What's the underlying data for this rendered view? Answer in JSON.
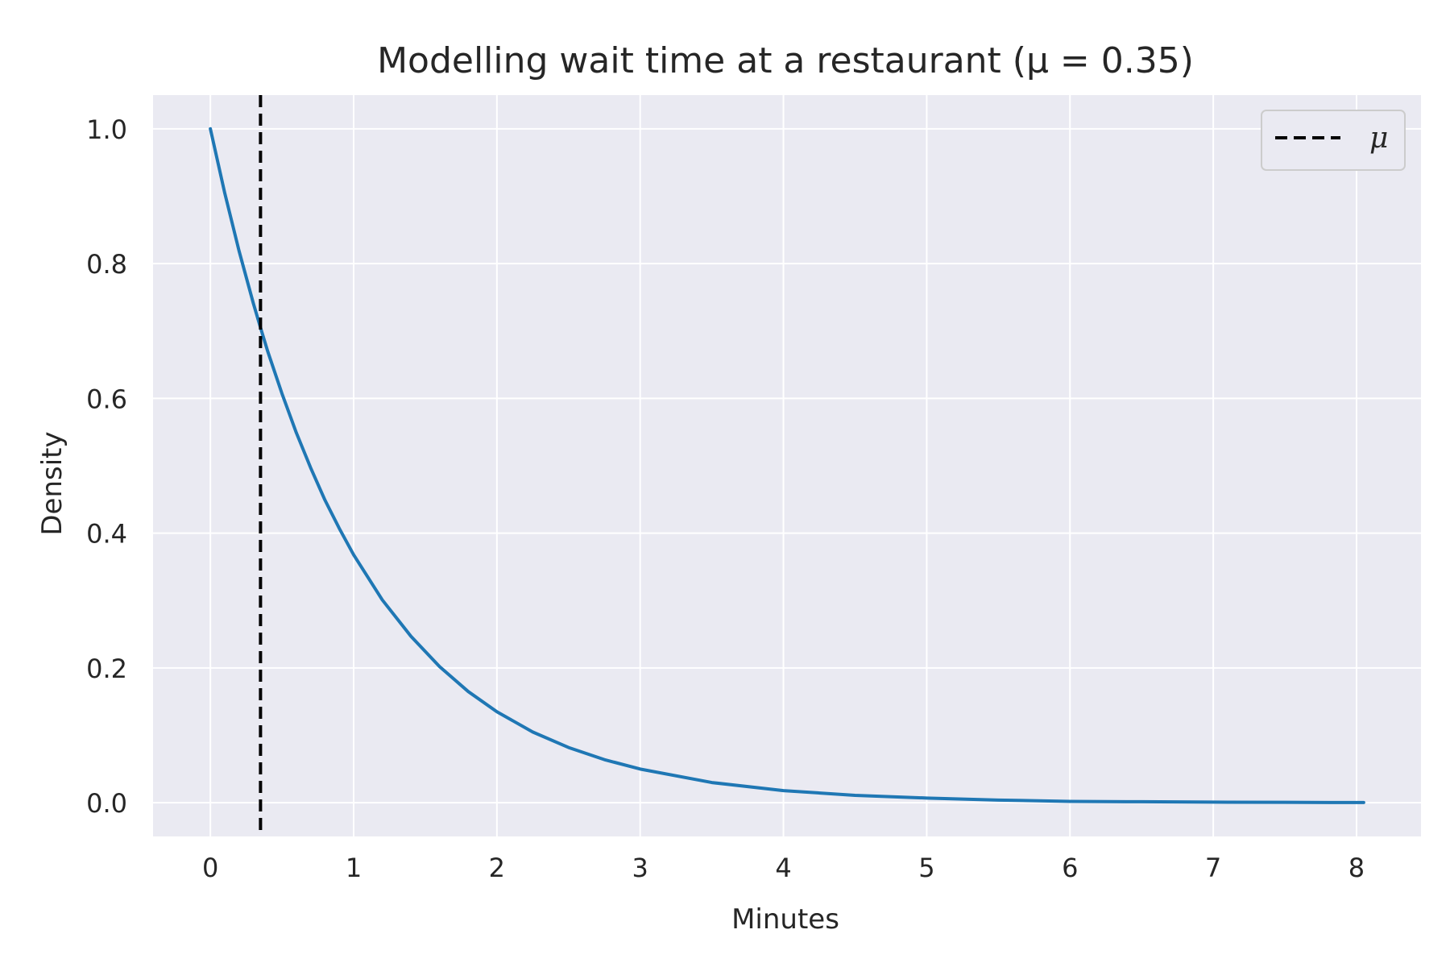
{
  "chart_data": {
    "type": "line",
    "title": "Modelling wait time at a restaurant (μ = 0.35)",
    "xlabel": "Minutes",
    "ylabel": "Density",
    "xlim": [
      -0.4,
      8.45
    ],
    "ylim": [
      -0.05,
      1.05
    ],
    "x_ticks": [
      0,
      1,
      2,
      3,
      4,
      5,
      6,
      7,
      8
    ],
    "y_ticks": [
      0.0,
      0.2,
      0.4,
      0.6,
      0.8,
      1.0
    ],
    "x_tick_labels": [
      "0",
      "1",
      "2",
      "3",
      "4",
      "5",
      "6",
      "7",
      "8"
    ],
    "y_tick_labels": [
      "0.0",
      "0.2",
      "0.4",
      "0.6",
      "0.8",
      "1.0"
    ],
    "grid": true,
    "background": "#eaeaf2",
    "series": [
      {
        "color": "#1f77b4",
        "x": [
          0,
          0.1,
          0.2,
          0.3,
          0.35,
          0.4,
          0.5,
          0.6,
          0.7,
          0.8,
          0.9,
          1.0,
          1.2,
          1.4,
          1.6,
          1.8,
          2.0,
          2.25,
          2.5,
          2.75,
          3.0,
          3.5,
          4.0,
          4.5,
          5.0,
          5.5,
          6.0,
          6.5,
          7.0,
          7.5,
          8.05
        ],
        "y": [
          1.0,
          0.905,
          0.819,
          0.741,
          0.705,
          0.67,
          0.607,
          0.549,
          0.497,
          0.449,
          0.407,
          0.368,
          0.301,
          0.247,
          0.202,
          0.165,
          0.135,
          0.105,
          0.082,
          0.064,
          0.05,
          0.03,
          0.018,
          0.011,
          0.007,
          0.004,
          0.002,
          0.0015,
          0.0009,
          0.0006,
          0.0003
        ]
      }
    ],
    "vlines": [
      {
        "x": 0.35,
        "color": "#000000",
        "style": "dashed",
        "legend_label": "μ"
      }
    ],
    "legend": {
      "position": "top-right",
      "entries": [
        "μ"
      ]
    }
  }
}
